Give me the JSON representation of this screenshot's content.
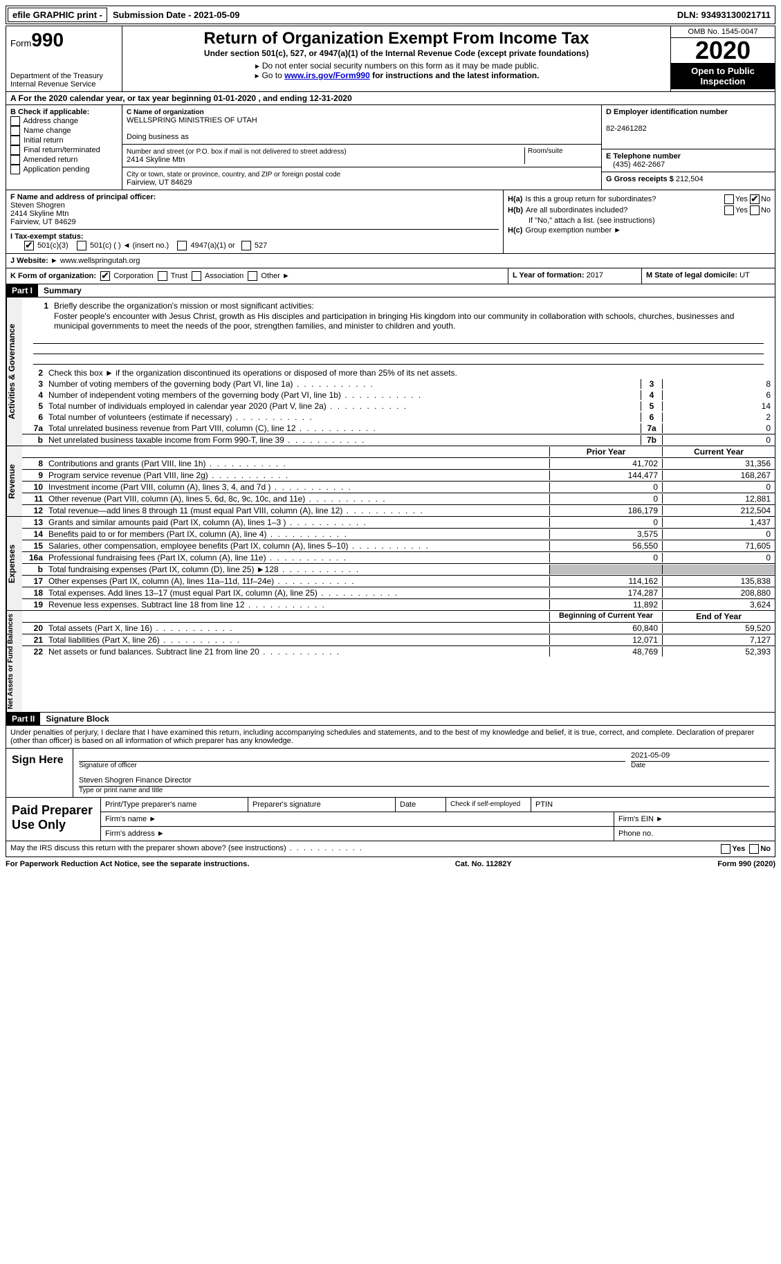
{
  "top": {
    "efile": "efile GRAPHIC print -",
    "submission": "Submission Date - 2021-05-09",
    "dln": "DLN: 93493130021711"
  },
  "header": {
    "form_label": "Form",
    "form_num": "990",
    "dept": "Department of the Treasury\nInternal Revenue Service",
    "title": "Return of Organization Exempt From Income Tax",
    "subtitle": "Under section 501(c), 527, or 4947(a)(1) of the Internal Revenue Code (except private foundations)",
    "note1": "Do not enter social security numbers on this form as it may be made public.",
    "note2_pre": "Go to ",
    "note2_link": "www.irs.gov/Form990",
    "note2_post": " for instructions and the latest information.",
    "omb": "OMB No. 1545-0047",
    "year": "2020",
    "open": "Open to Public Inspection"
  },
  "row_a": "A For the 2020 calendar year, or tax year beginning 01-01-2020   , and ending 12-31-2020",
  "box_b": {
    "title": "B Check if applicable:",
    "items": [
      "Address change",
      "Name change",
      "Initial return",
      "Final return/terminated",
      "Amended return",
      "Application pending"
    ]
  },
  "box_c": {
    "label": "C Name of organization",
    "name": "WELLSPRING MINISTRIES OF UTAH",
    "dba": "Doing business as",
    "addr_label": "Number and street (or P.O. box if mail is not delivered to street address)",
    "addr": "2414 Skyline Mtn",
    "room": "Room/suite",
    "city_label": "City or town, state or province, country, and ZIP or foreign postal code",
    "city": "Fairview, UT  84629"
  },
  "box_d": {
    "label": "D Employer identification number",
    "val": "82-2461282"
  },
  "box_e": {
    "label": "E Telephone number",
    "val": "(435) 462-2667"
  },
  "box_g": {
    "label": "G Gross receipts $",
    "val": "212,504"
  },
  "box_f": {
    "label": "F  Name and address of principal officer:",
    "name": "Steven Shogren",
    "addr": "2414 Skyline Mtn",
    "city": "Fairview, UT  84629"
  },
  "box_h": {
    "ha": "Is this a group return for subordinates?",
    "hb": "Are all subordinates included?",
    "hnote": "If \"No,\" attach a list. (see instructions)",
    "hc": "Group exemption number ►",
    "ha_label": "H(a)",
    "hb_label": "H(b)",
    "hc_label": "H(c)",
    "yes": "Yes",
    "no": "No"
  },
  "row_i": {
    "label": "I   Tax-exempt status:",
    "opts": [
      "501(c)(3)",
      "501(c) (  ) ◄ (insert no.)",
      "4947(a)(1) or",
      "527"
    ]
  },
  "row_j": {
    "label": "J  Website: ►",
    "val": "www.wellspringutah.org"
  },
  "row_k": {
    "label": "K Form of organization:",
    "opts": [
      "Corporation",
      "Trust",
      "Association",
      "Other ►"
    ]
  },
  "row_l": {
    "label": "L Year of formation:",
    "val": "2017"
  },
  "row_m": {
    "label": "M State of legal domicile:",
    "val": "UT"
  },
  "part1": {
    "hdr": "Part I",
    "title": "Summary"
  },
  "summary": {
    "l1_label": "Briefly describe the organization's mission or most significant activities:",
    "l1_text": "Foster people's encounter with Jesus Christ, growth as His disciples and participation in bringing His kingdom into our community in collaboration with schools, churches, businesses and municipal governments to meet the needs of the poor, strengthen families, and minister to children and youth.",
    "l2": "Check this box ►      if the organization discontinued its operations or disposed of more than 25% of its net assets.",
    "l3": {
      "t": "Number of voting members of the governing body (Part VI, line 1a)",
      "n": "3",
      "v": "8"
    },
    "l4": {
      "t": "Number of independent voting members of the governing body (Part VI, line 1b)",
      "n": "4",
      "v": "6"
    },
    "l5": {
      "t": "Total number of individuals employed in calendar year 2020 (Part V, line 2a)",
      "n": "5",
      "v": "14"
    },
    "l6": {
      "t": "Total number of volunteers (estimate if necessary)",
      "n": "6",
      "v": "2"
    },
    "l7a": {
      "t": "Total unrelated business revenue from Part VIII, column (C), line 12",
      "n": "7a",
      "v": "0"
    },
    "l7b": {
      "t": "Net unrelated business taxable income from Form 990-T, line 39",
      "n": "7b",
      "v": "0"
    }
  },
  "vtab": {
    "gov": "Activities & Governance",
    "rev": "Revenue",
    "exp": "Expenses",
    "net": "Net Assets or Fund Balances"
  },
  "cols": {
    "prior": "Prior Year",
    "curr": "Current Year",
    "begin": "Beginning of Current Year",
    "end": "End of Year"
  },
  "revenue": [
    {
      "n": "8",
      "t": "Contributions and grants (Part VIII, line 1h)",
      "p": "41,702",
      "c": "31,356"
    },
    {
      "n": "9",
      "t": "Program service revenue (Part VIII, line 2g)",
      "p": "144,477",
      "c": "168,267"
    },
    {
      "n": "10",
      "t": "Investment income (Part VIII, column (A), lines 3, 4, and 7d )",
      "p": "0",
      "c": "0"
    },
    {
      "n": "11",
      "t": "Other revenue (Part VIII, column (A), lines 5, 6d, 8c, 9c, 10c, and 11e)",
      "p": "0",
      "c": "12,881"
    },
    {
      "n": "12",
      "t": "Total revenue—add lines 8 through 11 (must equal Part VIII, column (A), line 12)",
      "p": "186,179",
      "c": "212,504"
    }
  ],
  "expenses": [
    {
      "n": "13",
      "t": "Grants and similar amounts paid (Part IX, column (A), lines 1–3 )",
      "p": "0",
      "c": "1,437"
    },
    {
      "n": "14",
      "t": "Benefits paid to or for members (Part IX, column (A), line 4)",
      "p": "3,575",
      "c": "0"
    },
    {
      "n": "15",
      "t": "Salaries, other compensation, employee benefits (Part IX, column (A), lines 5–10)",
      "p": "56,550",
      "c": "71,605"
    },
    {
      "n": "16a",
      "t": "Professional fundraising fees (Part IX, column (A), line 11e)",
      "p": "0",
      "c": "0"
    },
    {
      "n": "b",
      "t": "Total fundraising expenses (Part IX, column (D), line 25) ►128",
      "p": "",
      "c": "",
      "shaded": true
    },
    {
      "n": "17",
      "t": "Other expenses (Part IX, column (A), lines 11a–11d, 11f–24e)",
      "p": "114,162",
      "c": "135,838"
    },
    {
      "n": "18",
      "t": "Total expenses. Add lines 13–17 (must equal Part IX, column (A), line 25)",
      "p": "174,287",
      "c": "208,880"
    },
    {
      "n": "19",
      "t": "Revenue less expenses. Subtract line 18 from line 12",
      "p": "11,892",
      "c": "3,624"
    }
  ],
  "netassets": [
    {
      "n": "20",
      "t": "Total assets (Part X, line 16)",
      "p": "60,840",
      "c": "59,520"
    },
    {
      "n": "21",
      "t": "Total liabilities (Part X, line 26)",
      "p": "12,071",
      "c": "7,127"
    },
    {
      "n": "22",
      "t": "Net assets or fund balances. Subtract line 21 from line 20",
      "p": "48,769",
      "c": "52,393"
    }
  ],
  "part2": {
    "hdr": "Part II",
    "title": "Signature Block"
  },
  "sig": {
    "declaration": "Under penalties of perjury, I declare that I have examined this return, including accompanying schedules and statements, and to the best of my knowledge and belief, it is true, correct, and complete. Declaration of preparer (other than officer) is based on all information of which preparer has any knowledge.",
    "sign_here": "Sign Here",
    "sig_officer": "Signature of officer",
    "date_label": "Date",
    "date": "2021-05-09",
    "name": "Steven Shogren Finance Director",
    "name_label": "Type or print name and title"
  },
  "prep": {
    "title": "Paid Preparer Use Only",
    "h1": "Print/Type preparer's name",
    "h2": "Preparer's signature",
    "h3": "Date",
    "h4": "Check      if self-employed",
    "h5": "PTIN",
    "firm_name": "Firm's name   ►",
    "firm_ein": "Firm's EIN ►",
    "firm_addr": "Firm's address ►",
    "phone": "Phone no."
  },
  "footer": {
    "discuss": "May the IRS discuss this return with the preparer shown above? (see instructions)",
    "yes": "Yes",
    "no": "No",
    "paperwork": "For Paperwork Reduction Act Notice, see the separate instructions.",
    "cat": "Cat. No. 11282Y",
    "form": "Form 990 (2020)"
  },
  "num": {
    "1": "1",
    "2": "2",
    "3": "3",
    "4": "4",
    "5": "5",
    "6": "6",
    "7a": "7a",
    "b": "b"
  }
}
